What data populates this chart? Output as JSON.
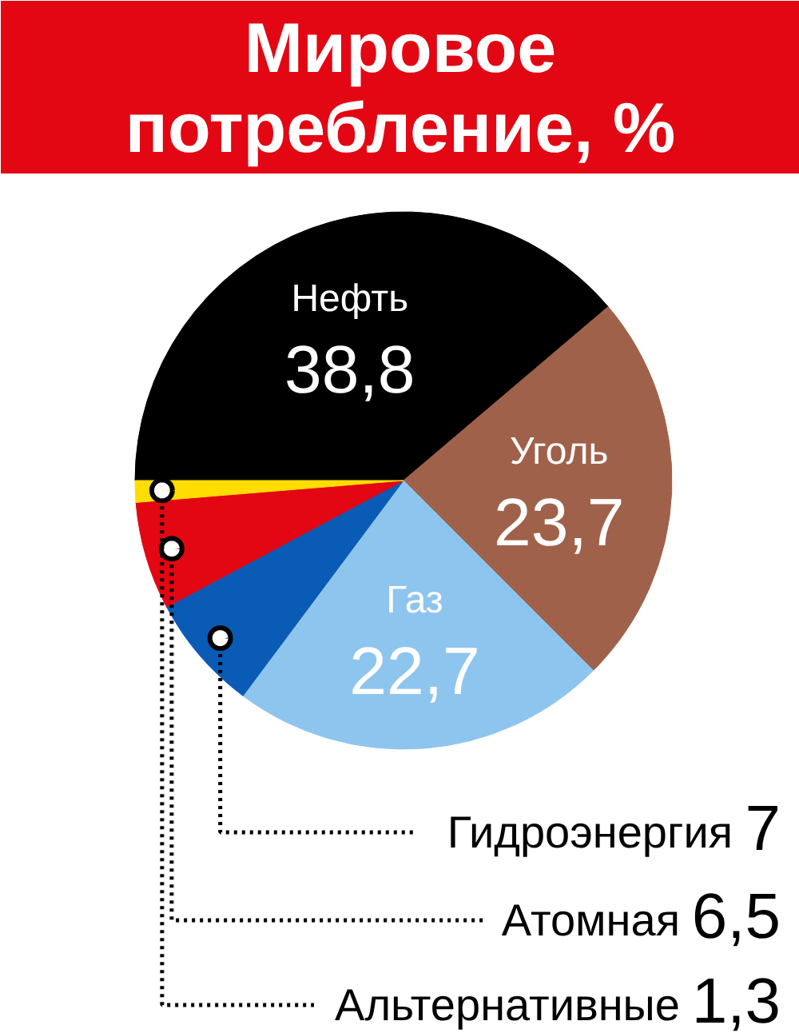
{
  "chart_data": {
    "type": "pie",
    "title": "Мировое потребление, %",
    "categories": [
      "Нефть",
      "Уголь",
      "Газ",
      "Гидроэнергия",
      "Атомная",
      "Альтернативные"
    ],
    "values": [
      38.8,
      23.7,
      22.7,
      7,
      6.5,
      1.3
    ],
    "value_labels": [
      "38,8",
      "23,7",
      "22,7",
      "7",
      "6,5",
      "1,3"
    ],
    "colors": [
      "#000000",
      "#a0614a",
      "#8ec5ee",
      "#0a5bb5",
      "#e30613",
      "#ffdd00"
    ]
  }
}
